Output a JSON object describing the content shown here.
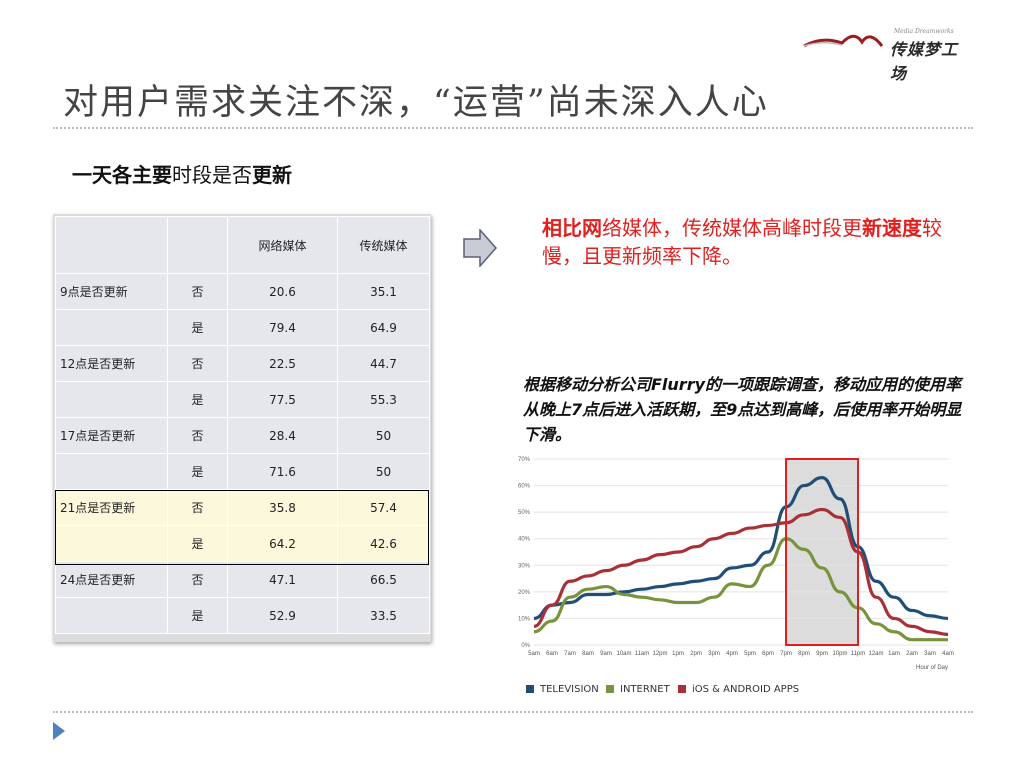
{
  "logo": {
    "tagline": "Media Dreamworks",
    "text": "传媒梦工场",
    "colors": {
      "arc": "#9b1d20"
    }
  },
  "page": {
    "title": "对用户需求关注不深，“运营”尚未深入人心",
    "subtitle_bold_1": "一天各主要",
    "subtitle_plain": "时段是否",
    "subtitle_bold_2": "更新"
  },
  "table": {
    "headers": [
      "",
      "",
      "网络媒体",
      "传统媒体"
    ],
    "rows": [
      {
        "label": "9点是否更新",
        "ans": "否",
        "net": "20.6",
        "trad": "35.1"
      },
      {
        "label": "",
        "ans": "是",
        "net": "79.4",
        "trad": "64.9"
      },
      {
        "label": "12点是否更新",
        "ans": "否",
        "net": "22.5",
        "trad": "44.7"
      },
      {
        "label": "",
        "ans": "是",
        "net": "77.5",
        "trad": "55.3"
      },
      {
        "label": "17点是否更新",
        "ans": "否",
        "net": "28.4",
        "trad": "50"
      },
      {
        "label": "",
        "ans": "是",
        "net": "71.6",
        "trad": "50"
      },
      {
        "label": "21点是否更新",
        "ans": "否",
        "net": "35.8",
        "trad": "57.4"
      },
      {
        "label": "",
        "ans": "是",
        "net": "64.2",
        "trad": "42.6"
      },
      {
        "label": "24点是否更新",
        "ans": "否",
        "net": "47.1",
        "trad": "66.5"
      },
      {
        "label": "",
        "ans": "是",
        "net": "52.9",
        "trad": "33.5"
      }
    ]
  },
  "callout": {
    "bold_1": "相比网",
    "plain_1": "络媒体，传统媒体高峰时段更",
    "bold_2": "新速度",
    "plain_2": "较慢，且更新频率下降。"
  },
  "quote": "根据移动分析公司Flurry的一项跟踪调查，移动应用的使用率从晚上7点后进入活跃期，至9点达到高峰，后使用率开始明显下滑。",
  "chart_data": {
    "type": "line",
    "categories": [
      "5am",
      "6am",
      "7am",
      "8am",
      "9am",
      "10am",
      "11am",
      "12pm",
      "1pm",
      "2pm",
      "3pm",
      "4pm",
      "5pm",
      "6pm",
      "7pm",
      "8pm",
      "9pm",
      "10pm",
      "11pm",
      "12am",
      "1am",
      "2am",
      "3am",
      "4am"
    ],
    "xlabel": "Hour of Day",
    "ylim": [
      0,
      70
    ],
    "yticks": [
      "0%",
      "10%",
      "20%",
      "30%",
      "40%",
      "50%",
      "60%",
      "70%"
    ],
    "series": [
      {
        "name": "TELEVISION",
        "color": "#1f4e79",
        "values": [
          10,
          15,
          16,
          19,
          19,
          20,
          21,
          22,
          23,
          24,
          25,
          29,
          30,
          35,
          52,
          60,
          63,
          55,
          37,
          24,
          18,
          13,
          11,
          10
        ]
      },
      {
        "name": "INTERNET",
        "color": "#77933c",
        "values": [
          5,
          9,
          18,
          21,
          22,
          19,
          18,
          17,
          16,
          16,
          18,
          23,
          22,
          30,
          40,
          36,
          29,
          20,
          14,
          8,
          5,
          2,
          2,
          2
        ]
      },
      {
        "name": "iOS & ANDROID APPS",
        "color": "#a93036",
        "values": [
          7,
          15,
          24,
          26,
          28,
          30,
          32,
          34,
          35,
          37,
          40,
          42,
          44,
          45,
          46,
          49,
          51,
          48,
          35,
          18,
          10,
          7,
          5,
          4
        ]
      }
    ],
    "highlight_range": [
      "7pm",
      "11pm"
    ],
    "highlight_color": "#e02020",
    "grid": true,
    "legend": "bottom"
  }
}
